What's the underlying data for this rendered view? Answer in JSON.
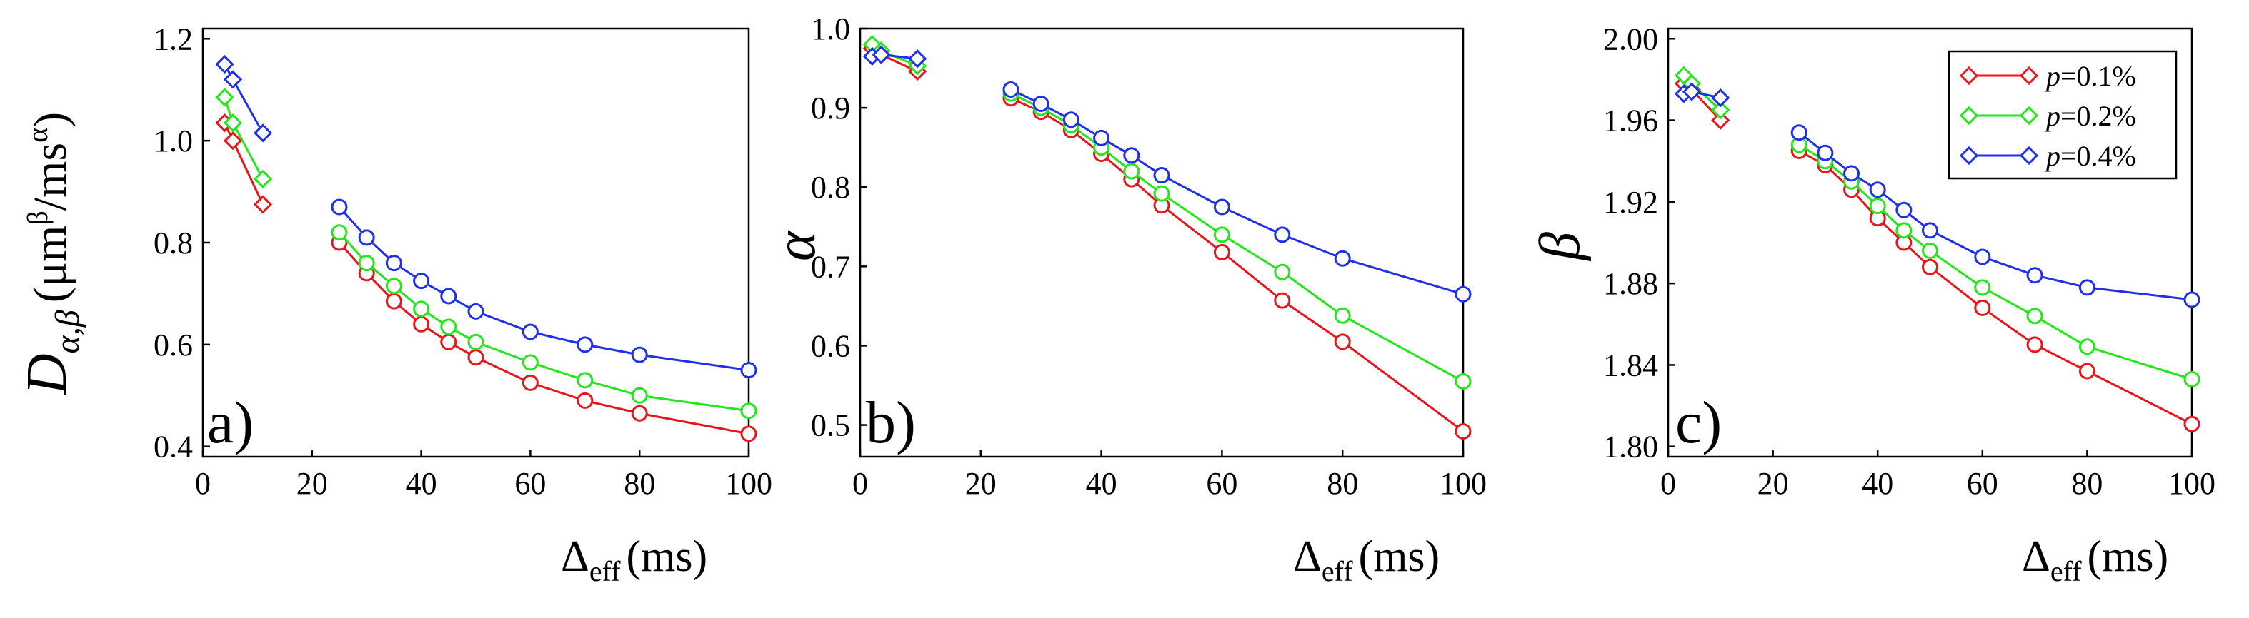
{
  "colors": {
    "p01": "#e8151b",
    "p02": "#22e81a",
    "p04": "#2030e8",
    "axis": "#000000"
  },
  "legend": {
    "entries": [
      {
        "prefix": "p",
        "value": "=0.1%",
        "color": "#e8151b"
      },
      {
        "prefix": "p",
        "value": "=0.2%",
        "color": "#22e81a"
      },
      {
        "prefix": "p",
        "value": "=0.4%",
        "color": "#2030e8"
      }
    ],
    "position": "top-right"
  },
  "chart_data": [
    {
      "type": "line",
      "panel_label": "a)",
      "ylabel": {
        "main": "D",
        "sub": "α,β",
        "unit_open": "(μm",
        "unit_sup": "β",
        "unit_mid": "/ms",
        "unit_sup2": "α",
        "unit_close": ")"
      },
      "xlabel": {
        "main": "Δ",
        "sub": "eff",
        "unit": "(ms)"
      },
      "xlim": [
        0,
        100
      ],
      "ylim": [
        0.38,
        1.22
      ],
      "xticks": [
        "0",
        "20",
        "40",
        "60",
        "80",
        "100"
      ],
      "xtick_values": [
        0,
        20,
        40,
        60,
        80,
        100
      ],
      "yticks": [
        "0.4",
        "0.6",
        "0.8",
        "1.0",
        "1.2"
      ],
      "ytick_values": [
        0.4,
        0.6,
        0.8,
        1.0,
        1.2
      ],
      "series": [
        {
          "name": "p=0.1%",
          "color": "#e8151b",
          "diamonds": {
            "x": [
              4,
              5.5,
              11
            ],
            "y": [
              1.035,
              1.0,
              0.875
            ]
          },
          "circles": {
            "x": [
              25,
              30,
              35,
              40,
              45,
              50,
              60,
              70,
              80,
              100
            ],
            "y": [
              0.8,
              0.74,
              0.685,
              0.64,
              0.605,
              0.575,
              0.525,
              0.49,
              0.465,
              0.425
            ]
          }
        },
        {
          "name": "p=0.2%",
          "color": "#22e81a",
          "diamonds": {
            "x": [
              4,
              5.5,
              11
            ],
            "y": [
              1.085,
              1.035,
              0.925
            ]
          },
          "circles": {
            "x": [
              25,
              30,
              35,
              40,
              45,
              50,
              60,
              70,
              80,
              100
            ],
            "y": [
              0.82,
              0.76,
              0.715,
              0.67,
              0.635,
              0.605,
              0.565,
              0.53,
              0.5,
              0.47
            ]
          }
        },
        {
          "name": "p=0.4%",
          "color": "#2030e8",
          "diamonds": {
            "x": [
              4,
              5.5,
              11
            ],
            "y": [
              1.15,
              1.12,
              1.015
            ]
          },
          "circles": {
            "x": [
              25,
              30,
              35,
              40,
              45,
              50,
              60,
              70,
              80,
              100
            ],
            "y": [
              0.87,
              0.81,
              0.76,
              0.725,
              0.695,
              0.665,
              0.625,
              0.6,
              0.58,
              0.55
            ]
          }
        }
      ]
    },
    {
      "type": "line",
      "panel_label": "b)",
      "ylabel": {
        "main": "α"
      },
      "xlabel": {
        "main": "Δ",
        "sub": "eff",
        "unit": "(ms)"
      },
      "xlim": [
        0,
        100
      ],
      "ylim": [
        0.46,
        1.0
      ],
      "xticks": [
        "0",
        "20",
        "40",
        "60",
        "80",
        "100"
      ],
      "xtick_values": [
        0,
        20,
        40,
        60,
        80,
        100
      ],
      "yticks": [
        "0.5",
        "0.6",
        "0.7",
        "0.8",
        "0.9",
        "1.0"
      ],
      "ytick_values": [
        0.5,
        0.6,
        0.7,
        0.8,
        0.9,
        1.0
      ],
      "series": [
        {
          "name": "p=0.1%",
          "color": "#e8151b",
          "diamonds": {
            "x": [
              2,
              3.5,
              9.5
            ],
            "y": [
              0.975,
              0.967,
              0.946
            ]
          },
          "circles": {
            "x": [
              25,
              30,
              35,
              40,
              45,
              50,
              60,
              70,
              80,
              100
            ],
            "y": [
              0.912,
              0.895,
              0.872,
              0.842,
              0.81,
              0.777,
              0.718,
              0.657,
              0.605,
              0.492
            ]
          }
        },
        {
          "name": "p=0.2%",
          "color": "#22e81a",
          "diamonds": {
            "x": [
              2,
              3.5,
              9.5
            ],
            "y": [
              0.98,
              0.972,
              0.953
            ]
          },
          "circles": {
            "x": [
              25,
              30,
              35,
              40,
              45,
              50,
              60,
              70,
              80,
              100
            ],
            "y": [
              0.918,
              0.9,
              0.878,
              0.85,
              0.82,
              0.792,
              0.74,
              0.693,
              0.638,
              0.555
            ]
          }
        },
        {
          "name": "p=0.4%",
          "color": "#2030e8",
          "diamonds": {
            "x": [
              2,
              3.5,
              9.5
            ],
            "y": [
              0.965,
              0.967,
              0.962
            ]
          },
          "circles": {
            "x": [
              25,
              30,
              35,
              40,
              45,
              50,
              60,
              70,
              80,
              100
            ],
            "y": [
              0.923,
              0.905,
              0.885,
              0.862,
              0.84,
              0.815,
              0.775,
              0.74,
              0.71,
              0.665
            ]
          }
        }
      ]
    },
    {
      "type": "line",
      "panel_label": "c)",
      "ylabel": {
        "main": "β"
      },
      "xlabel": {
        "main": "Δ",
        "sub": "eff",
        "unit": "(ms)"
      },
      "xlim": [
        0,
        100
      ],
      "ylim": [
        1.795,
        2.005
      ],
      "xticks": [
        "0",
        "20",
        "40",
        "60",
        "80",
        "100"
      ],
      "xtick_values": [
        0,
        20,
        40,
        60,
        80,
        100
      ],
      "yticks": [
        "1.80",
        "1.84",
        "1.88",
        "1.92",
        "1.96",
        "2.00"
      ],
      "ytick_values": [
        1.8,
        1.84,
        1.88,
        1.92,
        1.96,
        2.0
      ],
      "series": [
        {
          "name": "p=0.1%",
          "color": "#e8151b",
          "diamonds": {
            "x": [
              3,
              4.5,
              10
            ],
            "y": [
              1.978,
              1.975,
              1.96
            ]
          },
          "circles": {
            "x": [
              25,
              30,
              35,
              40,
              45,
              50,
              60,
              70,
              80,
              100
            ],
            "y": [
              1.945,
              1.938,
              1.926,
              1.912,
              1.9,
              1.888,
              1.868,
              1.85,
              1.837,
              1.811
            ]
          }
        },
        {
          "name": "p=0.2%",
          "color": "#22e81a",
          "diamonds": {
            "x": [
              3,
              4.5,
              10
            ],
            "y": [
              1.982,
              1.978,
              1.965
            ]
          },
          "circles": {
            "x": [
              25,
              30,
              35,
              40,
              45,
              50,
              60,
              70,
              80,
              100
            ],
            "y": [
              1.948,
              1.94,
              1.93,
              1.918,
              1.906,
              1.896,
              1.878,
              1.864,
              1.849,
              1.833
            ]
          }
        },
        {
          "name": "p=0.4%",
          "color": "#2030e8",
          "diamonds": {
            "x": [
              3,
              4.5,
              10
            ],
            "y": [
              1.973,
              1.974,
              1.971
            ]
          },
          "circles": {
            "x": [
              25,
              30,
              35,
              40,
              45,
              50,
              60,
              70,
              80,
              100
            ],
            "y": [
              1.954,
              1.944,
              1.934,
              1.926,
              1.916,
              1.906,
              1.893,
              1.884,
              1.878,
              1.872
            ]
          }
        }
      ]
    }
  ]
}
